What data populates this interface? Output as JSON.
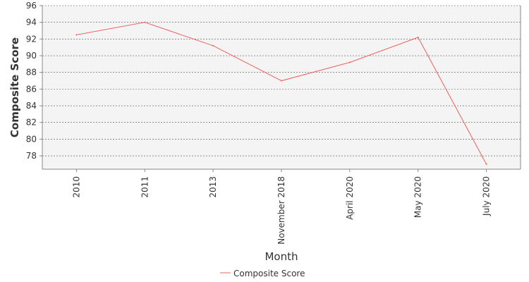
{
  "chart_data": {
    "type": "line",
    "title": "",
    "xlabel": "Month",
    "ylabel": "Composite Score",
    "categories": [
      "2010",
      "2011",
      "2013",
      "November 2018",
      "April 2020",
      "May 2020",
      "July 2020"
    ],
    "series": [
      {
        "name": "Composite Score",
        "values": [
          92.5,
          94.0,
          91.2,
          87.0,
          89.2,
          92.2,
          77.0
        ]
      }
    ],
    "ylim": [
      76.4,
      96
    ],
    "yticks": [
      78,
      80,
      82,
      84,
      86,
      88,
      90,
      92,
      94,
      96
    ],
    "grid": true,
    "legend": "bottom",
    "colors": {
      "series": "#f06060",
      "plot_background": "#f4f4f4",
      "grid": "#555555",
      "axis": "#888888"
    }
  }
}
